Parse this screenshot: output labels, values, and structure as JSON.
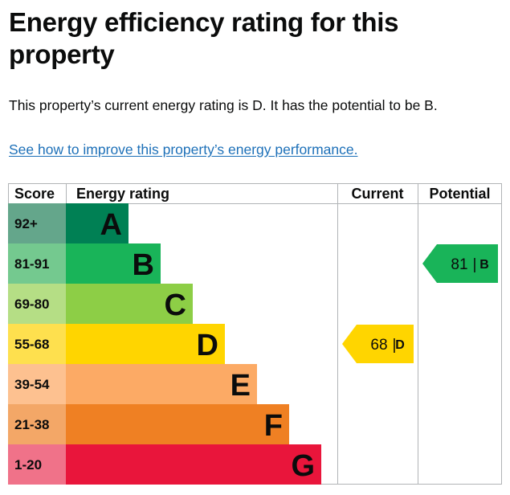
{
  "page": {
    "title": "Energy efficiency rating for this property",
    "summary": "This property’s current energy rating is D. It has the potential to be B.",
    "improve_link": "See how to improve this property’s energy performance."
  },
  "chart_data": {
    "type": "table",
    "headers": {
      "score": "Score",
      "rating": "Energy rating",
      "current": "Current",
      "potential": "Potential"
    },
    "bands": [
      {
        "score": "92+",
        "letter": "A",
        "bar_color": "#008054",
        "score_bg": "#64a68b"
      },
      {
        "score": "81-91",
        "letter": "B",
        "bar_color": "#19b459",
        "score_bg": "#74c98f"
      },
      {
        "score": "69-80",
        "letter": "C",
        "bar_color": "#8dce46",
        "score_bg": "#b5de85"
      },
      {
        "score": "55-68",
        "letter": "D",
        "bar_color": "#ffd500",
        "score_bg": "#fee04e"
      },
      {
        "score": "39-54",
        "letter": "E",
        "bar_color": "#fcaa65",
        "score_bg": "#fdc190"
      },
      {
        "score": "21-38",
        "letter": "F",
        "bar_color": "#ef8023",
        "score_bg": "#f3a767"
      },
      {
        "score": "1-20",
        "letter": "G",
        "bar_color": "#e9153b",
        "score_bg": "#f07289"
      }
    ],
    "current": {
      "value": 68,
      "letter": "D",
      "color": "#ffd500"
    },
    "potential": {
      "value": 81,
      "letter": "B",
      "color": "#19b459"
    }
  },
  "colors": {
    "link": "#1d70b8",
    "text": "#0b0c0c",
    "grid": "#b1b4b6"
  }
}
